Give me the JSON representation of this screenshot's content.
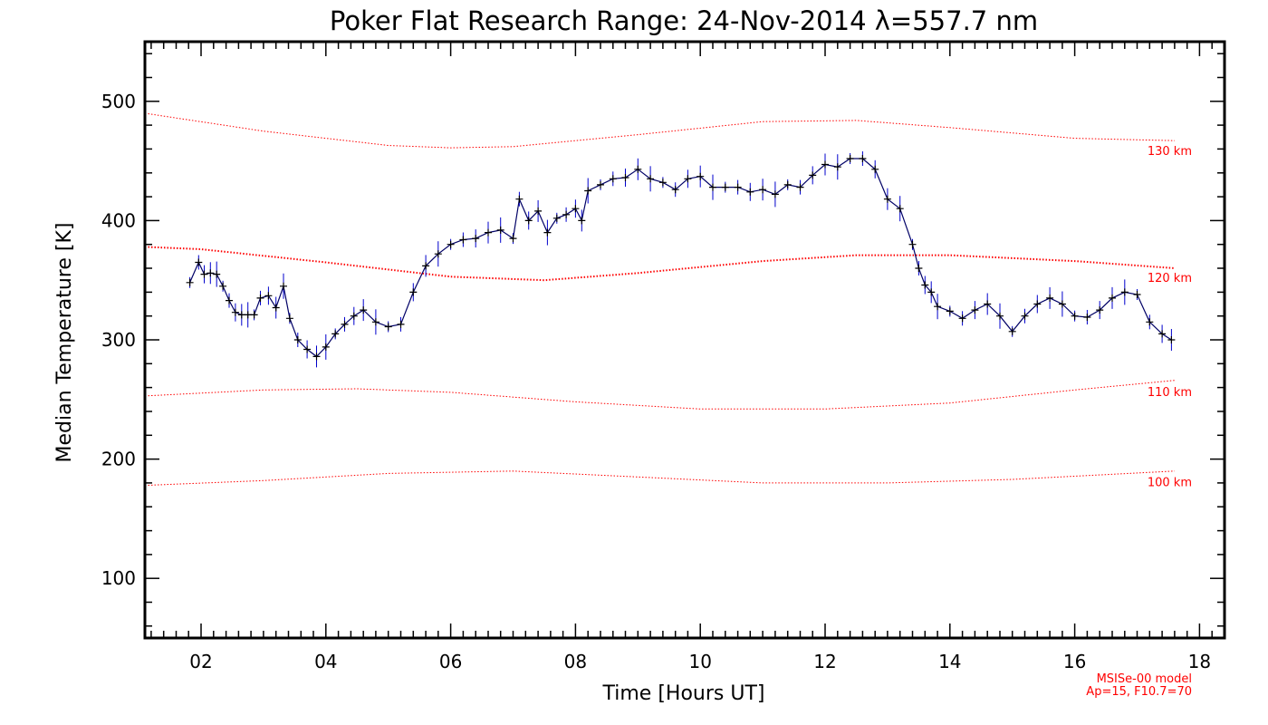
{
  "chart_data": {
    "type": "line",
    "title": "Poker Flat Research Range: 24-Nov-2014 λ=557.7 nm",
    "xlabel": "Time [Hours UT]",
    "ylabel": "Median Temperature [K]",
    "xlim": [
      1.1,
      18.4
    ],
    "ylim": [
      50,
      550
    ],
    "x_ticks": [
      2,
      4,
      6,
      8,
      10,
      12,
      14,
      16,
      18
    ],
    "x_tick_labels": [
      "02",
      "04",
      "06",
      "08",
      "10",
      "12",
      "14",
      "16",
      "18"
    ],
    "y_ticks": [
      100,
      200,
      300,
      400,
      500
    ],
    "y_tick_labels": [
      "100",
      "200",
      "300",
      "400",
      "500"
    ],
    "model_note": [
      "MSISe-00 model",
      "Ap=15, F10.7=70"
    ],
    "colors": {
      "data": "#000066",
      "error": "#0000cc",
      "model": "#ff0000"
    },
    "model_curves": [
      {
        "label": "130 km",
        "x": [
          1.1,
          3,
          5,
          6,
          7,
          9,
          11,
          12.5,
          14,
          16,
          17.6
        ],
        "y": [
          490,
          475,
          463,
          461,
          462,
          472,
          483,
          484,
          478,
          469,
          467
        ]
      },
      {
        "label": "120 km",
        "x": [
          1.1,
          2,
          4,
          6,
          7.5,
          9,
          11,
          12.5,
          14,
          16,
          17.6
        ],
        "y": [
          378,
          376,
          365,
          353,
          350,
          356,
          366,
          371,
          371,
          366,
          360
        ]
      },
      {
        "label": "110 km",
        "x": [
          1.1,
          3,
          4.5,
          6,
          8,
          10,
          12,
          14,
          16,
          17.6
        ],
        "y": [
          253,
          258,
          259,
          256,
          248,
          242,
          242,
          247,
          258,
          266
        ]
      },
      {
        "label": "100 km",
        "x": [
          1.1,
          3,
          5,
          7,
          9,
          11,
          13,
          15,
          17.6
        ],
        "y": [
          178,
          182,
          188,
          190,
          185,
          180,
          180,
          183,
          190
        ]
      }
    ],
    "series": [
      {
        "x": [
          1.82,
          1.96,
          2.05,
          2.15,
          2.25,
          2.35,
          2.45,
          2.55,
          2.65,
          2.75,
          2.85,
          2.95,
          3.08,
          3.2,
          3.32,
          3.42,
          3.55,
          3.7,
          3.85,
          4.0,
          4.15,
          4.3,
          4.45,
          4.6,
          4.8,
          5.0,
          5.2,
          5.4,
          5.6,
          5.8,
          6.0,
          6.2,
          6.4,
          6.6,
          6.8,
          7.0,
          7.1,
          7.25,
          7.4,
          7.55,
          7.7,
          7.85,
          8.0,
          8.1,
          8.2,
          8.4,
          8.6,
          8.8,
          9.0,
          9.2,
          9.4,
          9.6,
          9.8,
          10.0,
          10.2,
          10.4,
          10.6,
          10.8,
          11.0,
          11.2,
          11.4,
          11.6,
          11.8,
          12.0,
          12.2,
          12.4,
          12.6,
          12.8,
          13.0,
          13.2,
          13.4,
          13.5,
          13.6,
          13.7,
          13.8,
          14.0,
          14.2,
          14.4,
          14.6,
          14.8,
          15.0,
          15.2,
          15.4,
          15.6,
          15.8,
          16.0,
          16.2,
          16.4,
          16.6,
          16.8,
          17.0,
          17.2,
          17.4,
          17.55
        ],
        "values": [
          348,
          365,
          355,
          356,
          355,
          345,
          333,
          323,
          321,
          321,
          321,
          335,
          337,
          327,
          345,
          318,
          300,
          292,
          286,
          294,
          305,
          313,
          320,
          325,
          315,
          311,
          313,
          340,
          362,
          372,
          380,
          384,
          385,
          390,
          392,
          385,
          418,
          400,
          408,
          390,
          402,
          405,
          410,
          400,
          425,
          430,
          435,
          436,
          443,
          435,
          432,
          426,
          435,
          437,
          428,
          428,
          428,
          424,
          426,
          422,
          430,
          428,
          438,
          447,
          445,
          452,
          452,
          443,
          418,
          410,
          380,
          360,
          346,
          340,
          328,
          324,
          318,
          325,
          330,
          320,
          307,
          320,
          330,
          335,
          330,
          320,
          319,
          325,
          335,
          340,
          338,
          315,
          305,
          300
        ]
      }
    ]
  }
}
